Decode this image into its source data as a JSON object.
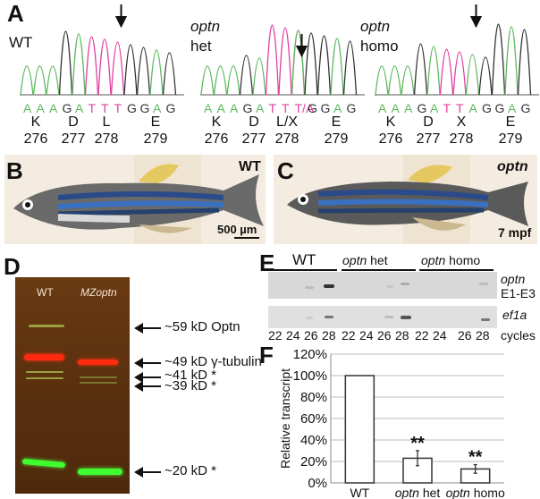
{
  "panels": {
    "A": {
      "label": "A",
      "tracks": [
        {
          "genotype_line1": "WT",
          "genotype_line2": "",
          "bases": [
            "A",
            "A",
            "A",
            "G",
            "A",
            "T",
            "T",
            "T",
            "G",
            "G",
            "A",
            "G"
          ],
          "codon_278": "T",
          "aa": [
            "K",
            "D",
            "L",
            "E"
          ],
          "pos": [
            "276",
            "277",
            "278",
            "279"
          ]
        },
        {
          "genotype_line1": "optn",
          "genotype_line2": "het",
          "bases": [
            "A",
            "A",
            "A",
            "G",
            "A",
            "T",
            "T",
            "T/A",
            "G",
            "G",
            "A",
            "G"
          ],
          "codon_278": "T/A",
          "aa": [
            "K",
            "D",
            "L/X",
            "E"
          ],
          "pos": [
            "276",
            "277",
            "278",
            "279"
          ]
        },
        {
          "genotype_line1": "optn",
          "genotype_line2": "homo",
          "bases": [
            "A",
            "A",
            "A",
            "G",
            "A",
            "T",
            "T",
            "A",
            "G",
            "G",
            "A",
            "G"
          ],
          "codon_278": "A",
          "aa": [
            "K",
            "D",
            "X",
            "E"
          ],
          "pos": [
            "276",
            "277",
            "278",
            "279"
          ]
        }
      ]
    },
    "B": {
      "label": "B",
      "genotype": "WT",
      "scale_bar": "500 µm"
    },
    "C": {
      "label": "C",
      "genotype": "optn",
      "age": "7 mpf"
    },
    "D": {
      "label": "D",
      "lanes": [
        "WT",
        "MZoptn"
      ],
      "bands": [
        {
          "label": "~59 kD Optn"
        },
        {
          "label": "~49 kD γ-tubulin"
        },
        {
          "label": "~41 kD *"
        },
        {
          "label": "~39 kD *"
        },
        {
          "label": "~20 kD *"
        }
      ]
    },
    "E": {
      "label": "E",
      "groups": [
        {
          "name_italic": "",
          "name": "WT"
        },
        {
          "name_italic": "optn",
          "name": " het"
        },
        {
          "name_italic": "optn",
          "name": " homo"
        }
      ],
      "rows": [
        {
          "label_line1": "optn",
          "label_line2": "E1-E3"
        },
        {
          "label_line1": "ef1a",
          "label_line2": ""
        }
      ],
      "cycles": [
        "22",
        "24",
        "26",
        "28",
        "22",
        "24",
        "26",
        "28",
        "22",
        "24",
        "26",
        "28"
      ],
      "cycles_label": "cycles"
    },
    "F": {
      "label": "F"
    }
  },
  "chart_data": {
    "type": "bar",
    "title": "",
    "xlabel": "",
    "ylabel": "Relative transcript",
    "categories": [
      "WT",
      "optn het",
      "optn homo"
    ],
    "category_parts": [
      [
        "",
        "WT"
      ],
      [
        "optn",
        " het"
      ],
      [
        "optn",
        " homo"
      ]
    ],
    "values": [
      100,
      23,
      13
    ],
    "errors": [
      0,
      7,
      4
    ],
    "significance": [
      "",
      "**",
      "**"
    ],
    "ylim": [
      0,
      120
    ],
    "yticks": [
      "0%",
      "20%",
      "40%",
      "60%",
      "80%",
      "100%",
      "120%"
    ],
    "ytick_values": [
      0,
      20,
      40,
      60,
      80,
      100,
      120
    ],
    "grid": true
  }
}
